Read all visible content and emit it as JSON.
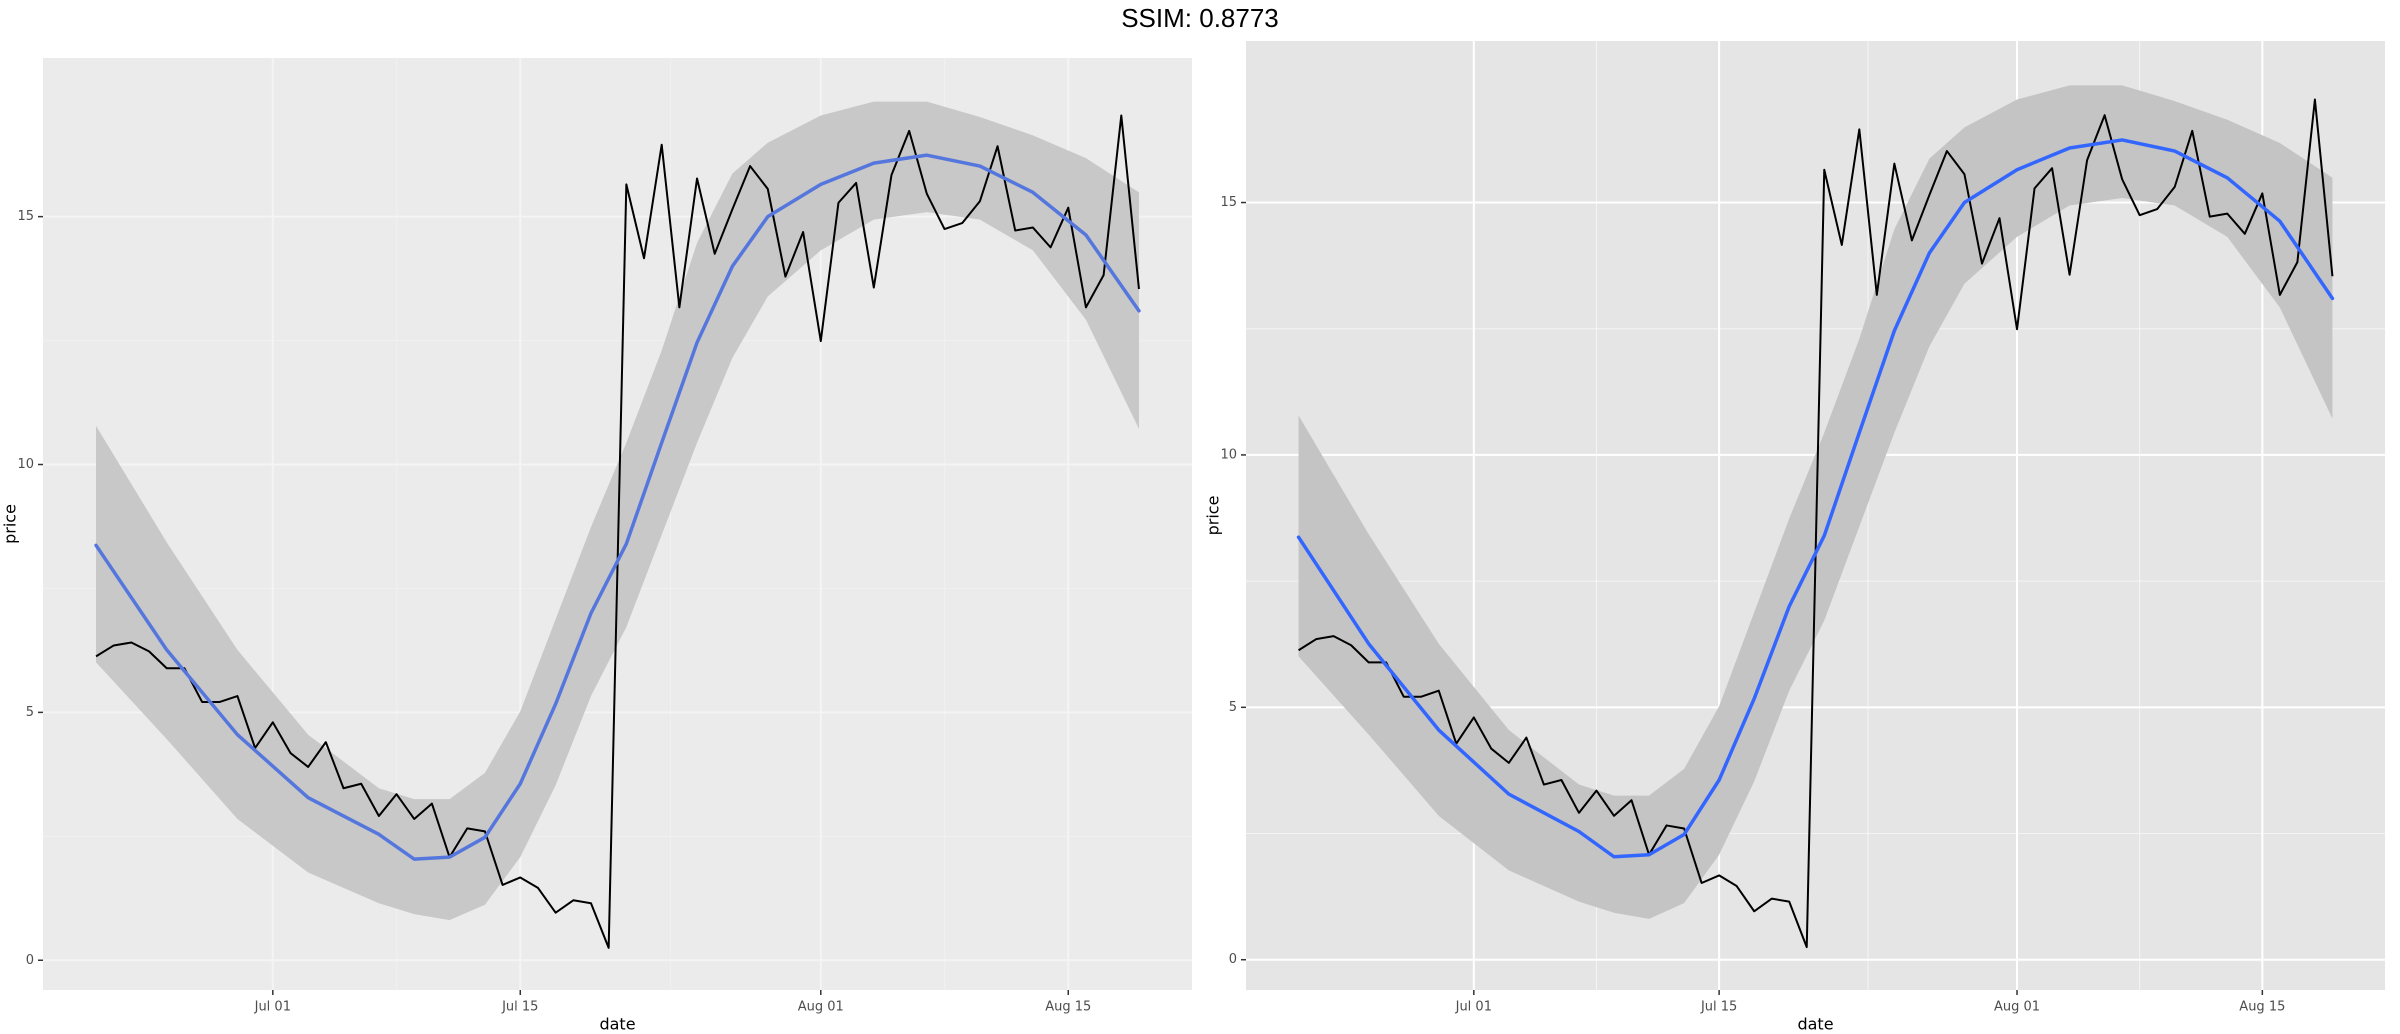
{
  "title": "SSIM: 0.8773",
  "chart_data": [
    {
      "type": "line",
      "x_label": "date",
      "y_label": "price",
      "xlim": [
        "06-18",
        "08-22"
      ],
      "ylim": [
        -0.6,
        18.2
      ],
      "yticks": [
        0,
        5,
        10,
        15
      ],
      "xticks": [
        {
          "value": "07-01",
          "label": "Jul 01"
        },
        {
          "value": "07-15",
          "label": "Jul 15"
        },
        {
          "value": "08-01",
          "label": "Aug 01"
        },
        {
          "value": "08-15",
          "label": "Aug 15"
        }
      ],
      "grid": true,
      "grid_color": "#f4f4f4",
      "panel_color": "#ebebeb",
      "color": "#000000",
      "x": [
        "06-21",
        "06-22",
        "06-23",
        "06-24",
        "06-25",
        "06-26",
        "06-27",
        "06-28",
        "06-29",
        "06-30",
        "07-01",
        "07-02",
        "07-03",
        "07-04",
        "07-05",
        "07-06",
        "07-07",
        "07-08",
        "07-09",
        "07-10",
        "07-11",
        "07-12",
        "07-13",
        "07-14",
        "07-15",
        "07-16",
        "07-17",
        "07-18",
        "07-19",
        "07-20",
        "07-21",
        "07-22",
        "07-23",
        "07-24",
        "07-25",
        "07-26",
        "07-27",
        "07-28",
        "07-29",
        "07-30",
        "07-31",
        "08-01",
        "08-02",
        "08-03",
        "08-04",
        "08-05",
        "08-06",
        "08-07",
        "08-08",
        "08-09",
        "08-10",
        "08-11",
        "08-12",
        "08-13",
        "08-14",
        "08-15",
        "08-16",
        "08-17",
        "08-18",
        "08-19"
      ],
      "values": [
        6.13,
        6.35,
        6.41,
        6.23,
        5.89,
        5.89,
        5.21,
        5.21,
        5.33,
        4.28,
        4.8,
        4.18,
        3.9,
        4.4,
        3.47,
        3.56,
        2.91,
        3.35,
        2.85,
        3.16,
        2.08,
        2.66,
        2.6,
        1.52,
        1.67,
        1.46,
        0.96,
        1.21,
        1.15,
        0.25,
        15.65,
        14.16,
        16.45,
        13.17,
        15.77,
        14.25,
        15.15,
        16.02,
        15.56,
        13.79,
        14.69,
        12.49,
        15.28,
        15.68,
        13.57,
        15.84,
        16.73,
        15.46,
        14.75,
        14.87,
        15.31,
        16.42,
        14.72,
        14.78,
        14.38,
        15.18,
        13.17,
        13.82,
        17.04,
        13.54
      ],
      "smooth": {
        "color": "#5577dd",
        "fill": "#c8c8c8",
        "x": [
          "06-21",
          "06-25",
          "06-29",
          "07-03",
          "07-07",
          "07-09",
          "07-11",
          "07-13",
          "07-15",
          "07-17",
          "07-19",
          "07-21",
          "07-23",
          "07-25",
          "07-27",
          "07-29",
          "08-01",
          "08-04",
          "08-07",
          "08-10",
          "08-13",
          "08-16",
          "08-19"
        ],
        "values": [
          8.37,
          6.26,
          4.55,
          3.28,
          2.54,
          2.04,
          2.08,
          2.48,
          3.56,
          5.17,
          7.0,
          8.4,
          10.44,
          12.46,
          14.0,
          15.0,
          15.65,
          16.08,
          16.24,
          16.02,
          15.49,
          14.63,
          13.1
        ],
        "upper": [
          10.78,
          8.43,
          6.26,
          4.55,
          3.47,
          3.25,
          3.25,
          3.78,
          5.02,
          6.88,
          8.74,
          10.44,
          12.3,
          14.47,
          15.87,
          16.49,
          17.04,
          17.32,
          17.32,
          17.01,
          16.64,
          16.18,
          15.49
        ],
        "lower": [
          6.01,
          4.46,
          2.85,
          1.77,
          1.15,
          0.93,
          0.81,
          1.12,
          2.08,
          3.53,
          5.33,
          6.72,
          8.58,
          10.44,
          12.15,
          13.39,
          14.32,
          14.94,
          15.09,
          14.94,
          14.32,
          12.92,
          10.72
        ]
      }
    },
    {
      "type": "line",
      "x_label": "date",
      "y_label": "price",
      "xlim": [
        "06-18",
        "08-22"
      ],
      "ylim": [
        -0.6,
        18.2
      ],
      "yticks": [
        0,
        5,
        10,
        15
      ],
      "xticks": [
        {
          "value": "07-01",
          "label": "Jul 01"
        },
        {
          "value": "07-15",
          "label": "Jul 15"
        },
        {
          "value": "08-01",
          "label": "Aug 01"
        },
        {
          "value": "08-15",
          "label": "Aug 15"
        }
      ],
      "grid": true,
      "grid_color": "#ffffff",
      "panel_color": "#e5e5e5",
      "color": "#000000",
      "x": [
        "06-21",
        "06-22",
        "06-23",
        "06-24",
        "06-25",
        "06-26",
        "06-27",
        "06-28",
        "06-29",
        "06-30",
        "07-01",
        "07-02",
        "07-03",
        "07-04",
        "07-05",
        "07-06",
        "07-07",
        "07-08",
        "07-09",
        "07-10",
        "07-11",
        "07-12",
        "07-13",
        "07-14",
        "07-15",
        "07-16",
        "07-17",
        "07-18",
        "07-19",
        "07-20",
        "07-21",
        "07-22",
        "07-23",
        "07-24",
        "07-25",
        "07-26",
        "07-27",
        "07-28",
        "07-29",
        "07-30",
        "07-31",
        "08-01",
        "08-02",
        "08-03",
        "08-04",
        "08-05",
        "08-06",
        "08-07",
        "08-08",
        "08-09",
        "08-10",
        "08-11",
        "08-12",
        "08-13",
        "08-14",
        "08-15",
        "08-16",
        "08-17",
        "08-18",
        "08-19"
      ],
      "values": [
        6.13,
        6.35,
        6.41,
        6.23,
        5.89,
        5.89,
        5.21,
        5.21,
        5.33,
        4.28,
        4.8,
        4.18,
        3.9,
        4.4,
        3.47,
        3.56,
        2.91,
        3.35,
        2.85,
        3.16,
        2.08,
        2.66,
        2.6,
        1.52,
        1.67,
        1.46,
        0.96,
        1.21,
        1.15,
        0.25,
        15.65,
        14.16,
        16.45,
        13.17,
        15.77,
        14.25,
        15.15,
        16.02,
        15.56,
        13.79,
        14.69,
        12.49,
        15.28,
        15.68,
        13.57,
        15.84,
        16.73,
        15.46,
        14.75,
        14.87,
        15.31,
        16.42,
        14.72,
        14.78,
        14.38,
        15.18,
        13.17,
        13.82,
        17.04,
        13.54
      ],
      "smooth": {
        "color": "#3366ff",
        "fill": "#c4c4c4",
        "x": [
          "06-21",
          "06-25",
          "06-29",
          "07-03",
          "07-07",
          "07-09",
          "07-11",
          "07-13",
          "07-15",
          "07-17",
          "07-19",
          "07-21",
          "07-23",
          "07-25",
          "07-27",
          "07-29",
          "08-01",
          "08-04",
          "08-07",
          "08-10",
          "08-13",
          "08-16",
          "08-19"
        ],
        "values": [
          8.37,
          6.26,
          4.55,
          3.28,
          2.54,
          2.04,
          2.08,
          2.48,
          3.56,
          5.17,
          7.0,
          8.4,
          10.44,
          12.46,
          14.0,
          15.0,
          15.65,
          16.08,
          16.24,
          16.02,
          15.49,
          14.63,
          13.1
        ],
        "upper": [
          10.78,
          8.43,
          6.26,
          4.55,
          3.47,
          3.25,
          3.25,
          3.78,
          5.02,
          6.88,
          8.74,
          10.44,
          12.3,
          14.47,
          15.87,
          16.49,
          17.04,
          17.32,
          17.32,
          17.01,
          16.64,
          16.18,
          15.49
        ],
        "lower": [
          6.01,
          4.46,
          2.85,
          1.77,
          1.15,
          0.93,
          0.81,
          1.12,
          2.08,
          3.53,
          5.33,
          6.72,
          8.58,
          10.44,
          12.15,
          13.39,
          14.32,
          14.94,
          15.09,
          14.94,
          14.32,
          12.92,
          10.72
        ]
      }
    }
  ]
}
